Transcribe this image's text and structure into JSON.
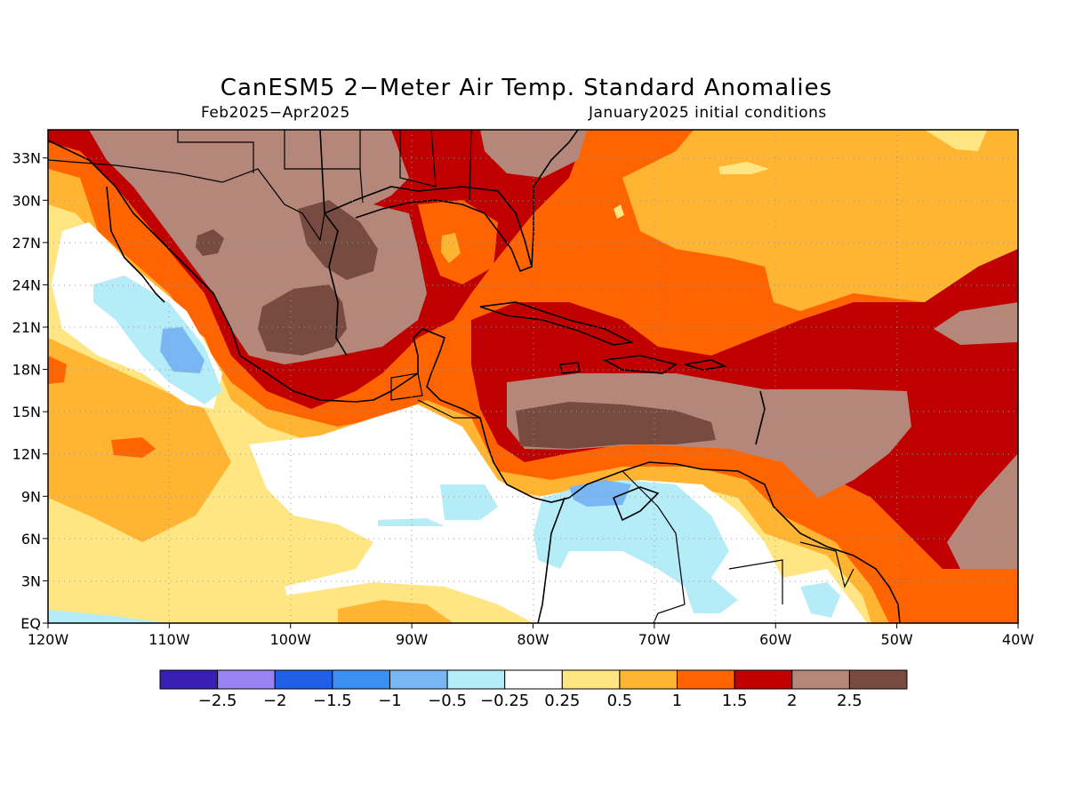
{
  "title": "CanESM5 2−Meter Air Temp. Standard Anomalies",
  "subtitle_left": "Feb2025−Apr2025",
  "subtitle_right": "January2025 initial conditions",
  "map": {
    "lon_range": [
      -120,
      -40
    ],
    "lat_range": [
      0,
      35
    ],
    "lat_ticks": [
      {
        "value": 33,
        "label": "33N"
      },
      {
        "value": 30,
        "label": "30N"
      },
      {
        "value": 27,
        "label": "27N"
      },
      {
        "value": 24,
        "label": "24N"
      },
      {
        "value": 21,
        "label": "21N"
      },
      {
        "value": 18,
        "label": "18N"
      },
      {
        "value": 15,
        "label": "15N"
      },
      {
        "value": 12,
        "label": "12N"
      },
      {
        "value": 9,
        "label": "9N"
      },
      {
        "value": 6,
        "label": "6N"
      },
      {
        "value": 3,
        "label": "3N"
      },
      {
        "value": 0,
        "label": "EQ"
      }
    ],
    "lon_ticks": [
      {
        "value": -120,
        "label": "120W"
      },
      {
        "value": -110,
        "label": "110W"
      },
      {
        "value": -100,
        "label": "100W"
      },
      {
        "value": -90,
        "label": "90W"
      },
      {
        "value": -80,
        "label": "80W"
      },
      {
        "value": -70,
        "label": "70W"
      },
      {
        "value": -60,
        "label": "60W"
      },
      {
        "value": -50,
        "label": "50W"
      },
      {
        "value": -40,
        "label": "40W"
      }
    ]
  },
  "colorbar": {
    "colors": [
      "#3a1fb4",
      "#9a83f2",
      "#2060e6",
      "#3a8ff0",
      "#78b6f4",
      "#b4ecf8",
      "#ffffff",
      "#ffe682",
      "#ffb432",
      "#ff6400",
      "#c00000",
      "#b4877a",
      "#784b41"
    ],
    "labels": [
      "−2.5",
      "−2",
      "−1.5",
      "−1",
      "−0.5",
      "−0.25",
      "0.25",
      "0.5",
      "1",
      "1.5",
      "2",
      "2.5"
    ]
  }
}
